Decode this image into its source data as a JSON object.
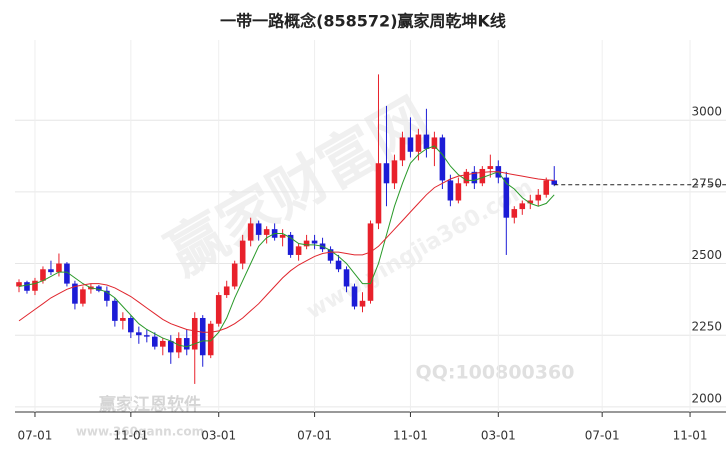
{
  "chart_data": {
    "type": "candlestick",
    "title": "一带一路概念(858572)赢家周乾坤K线",
    "categories": [
      null,
      null,
      "07-01",
      null,
      null,
      null,
      null,
      null,
      null,
      null,
      null,
      null,
      null,
      null,
      "11-01",
      null,
      null,
      null,
      null,
      null,
      null,
      null,
      null,
      null,
      null,
      "03-01",
      null,
      null,
      null,
      null,
      null,
      null,
      null,
      null,
      null,
      null,
      null,
      "07-01",
      null,
      null,
      null,
      null,
      null,
      null,
      null,
      null,
      null,
      null,
      null,
      "11-01",
      null,
      null,
      null,
      null,
      null,
      null,
      null,
      null,
      null,
      null,
      "03-01",
      null,
      null,
      null,
      null,
      null,
      null,
      null,
      null,
      null,
      null,
      null,
      null,
      "07-01",
      null,
      null,
      null,
      null,
      null,
      null,
      null,
      null,
      null,
      null,
      "11-01",
      null,
      null,
      null,
      null
    ],
    "open": [
      2420,
      2435,
      2405,
      2440,
      2480,
      2470,
      2500,
      2430,
      2360,
      2410,
      2420,
      2405,
      2370,
      2300,
      2310,
      2260,
      2250,
      2245,
      2210,
      2230,
      2190,
      2240,
      2200,
      2310,
      2180,
      2290,
      2390,
      2420,
      2500,
      2580,
      2640,
      2600,
      2620,
      2590,
      2600,
      2530,
      2560,
      2580,
      2570,
      2550,
      2510,
      2480,
      2420,
      2350,
      2370,
      2640,
      2850,
      2780,
      2860,
      2940,
      2890,
      2950,
      2900,
      2940,
      2790,
      2720,
      2780,
      2820,
      2780,
      2830,
      2840,
      2800,
      2660,
      2690,
      2710,
      2720,
      2740,
      2790,
      null,
      null,
      null,
      null,
      null,
      null,
      null,
      null,
      null,
      null,
      null,
      null,
      null,
      null,
      null,
      null,
      null,
      null,
      null,
      null,
      null
    ],
    "high": [
      2445,
      2440,
      2450,
      2490,
      2510,
      2535,
      2505,
      2440,
      2420,
      2430,
      2425,
      2420,
      2380,
      2330,
      2320,
      2280,
      2270,
      2260,
      2240,
      2250,
      2260,
      2270,
      2330,
      2320,
      2300,
      2400,
      2440,
      2510,
      2600,
      2660,
      2650,
      2630,
      2640,
      2620,
      2610,
      2570,
      2600,
      2600,
      2590,
      2560,
      2530,
      2490,
      2430,
      2400,
      2650,
      3160,
      3050,
      2880,
      2960,
      3010,
      2970,
      3040,
      2960,
      2950,
      2810,
      2800,
      2830,
      2840,
      2840,
      2880,
      2860,
      2820,
      2700,
      2720,
      2740,
      2760,
      2800,
      2840,
      null,
      null,
      null,
      null,
      null,
      null,
      null,
      null,
      null,
      null,
      null,
      null,
      null,
      null,
      null,
      null,
      null,
      null,
      null,
      null,
      null
    ],
    "low": [
      2400,
      2395,
      2390,
      2430,
      2460,
      2455,
      2420,
      2340,
      2350,
      2395,
      2400,
      2350,
      2280,
      2270,
      2240,
      2220,
      2225,
      2200,
      2180,
      2150,
      2170,
      2180,
      2080,
      2140,
      2170,
      2280,
      2380,
      2410,
      2480,
      2560,
      2580,
      2570,
      2580,
      2560,
      2520,
      2510,
      2550,
      2550,
      2540,
      2500,
      2470,
      2400,
      2340,
      2330,
      2360,
      2620,
      2700,
      2760,
      2840,
      2870,
      2860,
      2870,
      2840,
      2760,
      2700,
      2710,
      2770,
      2760,
      2770,
      2800,
      2780,
      2530,
      2640,
      2670,
      2690,
      2700,
      2730,
      2770,
      null,
      null,
      null,
      null,
      null,
      null,
      null,
      null,
      null,
      null,
      null,
      null,
      null,
      null,
      null,
      null,
      null,
      null,
      null,
      null,
      null
    ],
    "close": [
      2435,
      2405,
      2440,
      2480,
      2470,
      2500,
      2430,
      2360,
      2410,
      2420,
      2405,
      2370,
      2300,
      2310,
      2260,
      2250,
      2245,
      2210,
      2230,
      2190,
      2240,
      2200,
      2310,
      2180,
      2290,
      2390,
      2420,
      2500,
      2580,
      2640,
      2600,
      2620,
      2590,
      2600,
      2530,
      2560,
      2580,
      2570,
      2550,
      2510,
      2480,
      2420,
      2350,
      2370,
      2640,
      2850,
      2780,
      2860,
      2940,
      2890,
      2950,
      2900,
      2940,
      2790,
      2720,
      2780,
      2820,
      2780,
      2830,
      2840,
      2800,
      2660,
      2690,
      2710,
      2720,
      2740,
      2790,
      2775,
      null,
      null,
      null,
      null,
      null,
      null,
      null,
      null,
      null,
      null,
      null,
      null,
      null,
      null,
      null,
      null,
      null,
      null,
      null,
      null,
      null
    ],
    "up_color": "#e8212b",
    "down_color": "#1c1cd6",
    "lines": [
      {
        "color": "#2a9a2a",
        "values": [
          2420,
          2425,
          2430,
          2440,
          2455,
          2470,
          2470,
          2450,
          2430,
          2415,
          2410,
          2400,
          2380,
          2350,
          2320,
          2290,
          2270,
          2255,
          2240,
          2230,
          2215,
          2210,
          2220,
          2230,
          2230,
          2260,
          2310,
          2380,
          2440,
          2500,
          2560,
          2590,
          2605,
          2605,
          2590,
          2570,
          2565,
          2565,
          2560,
          2545,
          2525,
          2500,
          2465,
          2430,
          2430,
          2500,
          2600,
          2700,
          2780,
          2850,
          2880,
          2900,
          2910,
          2880,
          2840,
          2810,
          2790,
          2790,
          2800,
          2810,
          2820,
          2780,
          2760,
          2730,
          2710,
          2700,
          2710,
          2740,
          null,
          null,
          null,
          null,
          null,
          null,
          null,
          null,
          null,
          null,
          null,
          null,
          null,
          null,
          null,
          null,
          null,
          null,
          null,
          null,
          null
        ]
      },
      {
        "color": "#e0262e",
        "values": [
          2300,
          2320,
          2340,
          2360,
          2380,
          2395,
          2410,
          2420,
          2425,
          2430,
          2430,
          2425,
          2415,
          2400,
          2385,
          2365,
          2345,
          2325,
          2305,
          2290,
          2280,
          2270,
          2265,
          2260,
          2260,
          2265,
          2275,
          2290,
          2310,
          2335,
          2360,
          2390,
          2420,
          2450,
          2475,
          2495,
          2510,
          2525,
          2535,
          2540,
          2540,
          2535,
          2530,
          2530,
          2540,
          2560,
          2590,
          2620,
          2650,
          2680,
          2710,
          2740,
          2765,
          2780,
          2795,
          2805,
          2810,
          2815,
          2818,
          2820,
          2820,
          2815,
          2810,
          2805,
          2800,
          2795,
          2792,
          2790,
          null,
          null,
          null,
          null,
          null,
          null,
          null,
          null,
          null,
          null,
          null,
          null,
          null,
          null,
          null,
          null,
          null,
          null,
          null,
          null,
          null
        ]
      }
    ],
    "last_price": 2775,
    "ylim": [
      1982,
      3280
    ],
    "yticks": [
      2000,
      2250,
      2500,
      2750,
      3000
    ],
    "grid": true,
    "watermarks": [
      "赢家财富网",
      "www.yingjia360.com",
      "赢家江恩软件",
      "QQ:100800360",
      "www.360gann.com"
    ]
  }
}
